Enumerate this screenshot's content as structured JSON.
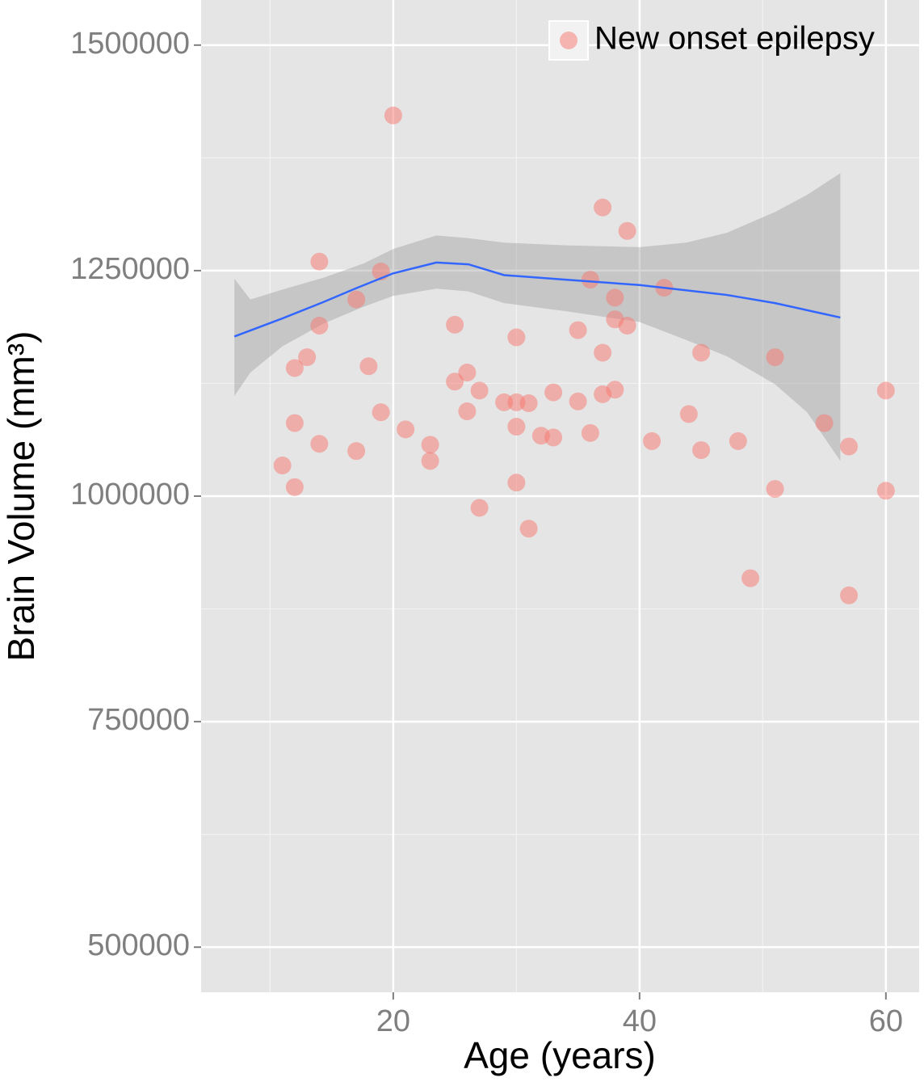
{
  "chart_data": {
    "type": "scatter",
    "x_label": "Age (years)",
    "y_label": "Brain Volume (mm³)",
    "xlim": [
      4.4,
      62.7
    ],
    "ylim": [
      450000,
      1550000
    ],
    "xticks": [
      20,
      40,
      60
    ],
    "yticks": [
      500000,
      750000,
      1000000,
      1250000,
      1500000
    ],
    "xminor": [
      10,
      30,
      50
    ],
    "yminor": [
      625000,
      875000,
      1125000,
      1375000
    ],
    "grid": true,
    "legend": "top-right",
    "series": [
      {
        "name": "New onset epilepsy",
        "color": "#F8766D",
        "x": [
          20,
          37,
          39,
          14,
          19,
          36,
          42,
          17,
          38,
          38,
          14,
          25,
          39,
          35,
          30,
          13,
          37,
          45,
          51,
          12,
          18,
          26,
          25,
          27,
          38,
          60,
          33,
          37,
          29,
          30,
          31,
          35,
          19,
          26,
          44,
          12,
          55,
          30,
          21,
          32,
          33,
          36,
          41,
          48,
          14,
          23,
          57,
          17,
          45,
          23,
          11,
          12,
          51,
          60,
          30,
          27,
          31,
          49,
          57
        ],
        "values": [
          1422000,
          1320000,
          1294000,
          1260000,
          1249000,
          1240000,
          1231000,
          1218000,
          1220000,
          1196000,
          1189000,
          1190000,
          1189000,
          1184000,
          1176000,
          1154000,
          1159000,
          1159000,
          1154000,
          1142000,
          1144000,
          1137000,
          1127000,
          1117000,
          1118000,
          1117000,
          1115000,
          1113000,
          1104000,
          1104000,
          1103000,
          1105000,
          1093000,
          1094000,
          1091000,
          1081000,
          1081000,
          1077000,
          1074000,
          1067000,
          1065000,
          1070000,
          1061000,
          1061000,
          1058000,
          1057000,
          1055000,
          1050000,
          1051000,
          1039000,
          1034000,
          1010000,
          1008000,
          1006000,
          1015000,
          987000,
          964000,
          909000,
          890000
        ]
      }
    ],
    "smooth": {
      "color": "#3366FF",
      "x": [
        7.1,
        11.0,
        14.3,
        16.9,
        20,
        23.5,
        26.1,
        29.0,
        34.0,
        40,
        47.1,
        51.0,
        56.3
      ],
      "values": [
        1177000,
        1197000,
        1215000,
        1230000,
        1247000,
        1259000,
        1257000,
        1245000,
        1240000,
        1234000,
        1223000,
        1214000,
        1198000
      ]
    },
    "band": {
      "color": "#999999",
      "x": [
        7.1,
        8.4,
        11.0,
        14.3,
        17.6,
        20,
        23.5,
        26.1,
        29.0,
        34.0,
        40,
        43.8,
        47.1,
        51.0,
        53.6,
        56.3
      ],
      "upper": [
        1241000,
        1218000,
        1229000,
        1242000,
        1258000,
        1274000,
        1289000,
        1286000,
        1281000,
        1278000,
        1276000,
        1281000,
        1292000,
        1315000,
        1334000,
        1358000
      ],
      "lower": [
        1111000,
        1137000,
        1166000,
        1191000,
        1210000,
        1222000,
        1230000,
        1227000,
        1214000,
        1205000,
        1193000,
        1173000,
        1155000,
        1124000,
        1093000,
        1039000
      ]
    }
  }
}
